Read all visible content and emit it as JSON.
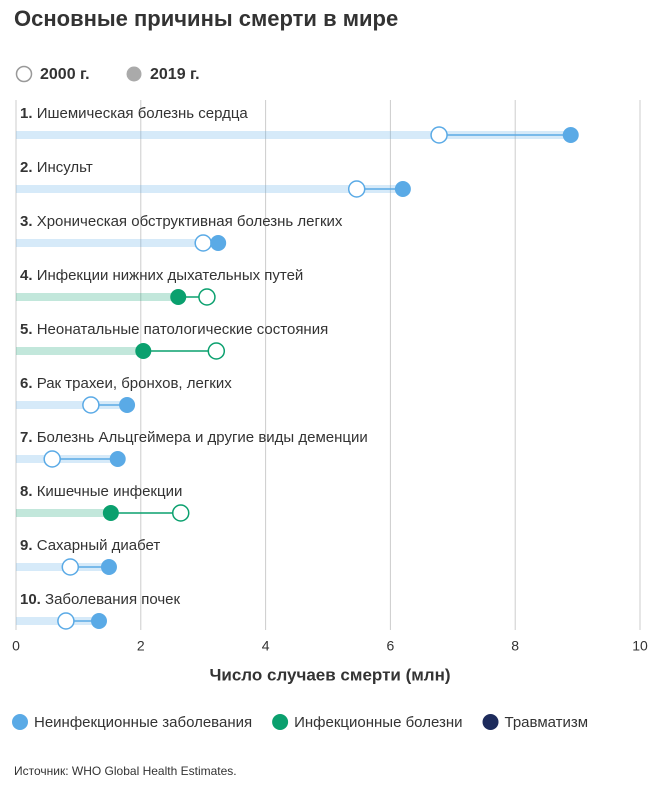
{
  "chart_data": {
    "type": "dumbbell",
    "title": "Основные причины смерти в мире",
    "ranks": [
      "1.",
      "2.",
      "3.",
      "4.",
      "5.",
      "6.",
      "7.",
      "8.",
      "9.",
      "10."
    ],
    "categories": [
      "Ишемическая болезнь сердца",
      "Инсульт",
      "Хроническая обструктивная болезнь легких",
      "Инфекции нижних дыхательных путей",
      "Неонатальные патологические состояния",
      "Рак трахеи, бронхов, легких",
      "Болезнь Альцгеймера и другие виды деменции",
      "Кишечные инфекции",
      "Сахарный диабет",
      "Заболевания почек"
    ],
    "category_group": [
      0,
      0,
      0,
      1,
      1,
      0,
      0,
      1,
      0,
      0
    ],
    "groups": [
      {
        "name": "Неинфекционные заболевания",
        "color": "#5aaae6"
      },
      {
        "name": "Инфекционные болезни",
        "color": "#0aa06e"
      },
      {
        "name": "Травматизм",
        "color": "#1d2b5c"
      }
    ],
    "series": [
      {
        "name": "2000 г.",
        "style": "hollow",
        "values": [
          6.78,
          5.46,
          3.0,
          3.06,
          3.21,
          1.2,
          0.58,
          2.64,
          0.87,
          0.8
        ]
      },
      {
        "name": "2019 г.",
        "style": "filled",
        "color": "#aaaaaa",
        "values": [
          8.89,
          6.2,
          3.24,
          2.6,
          2.04,
          1.78,
          1.63,
          1.52,
          1.49,
          1.33
        ]
      }
    ],
    "xlabel": "Число случаев смерти (млн)",
    "xlim": [
      0,
      10
    ],
    "xticks": [
      0,
      2,
      4,
      6,
      8,
      10
    ],
    "grid": true,
    "source": "Источник: WHO Global Health Estimates."
  }
}
